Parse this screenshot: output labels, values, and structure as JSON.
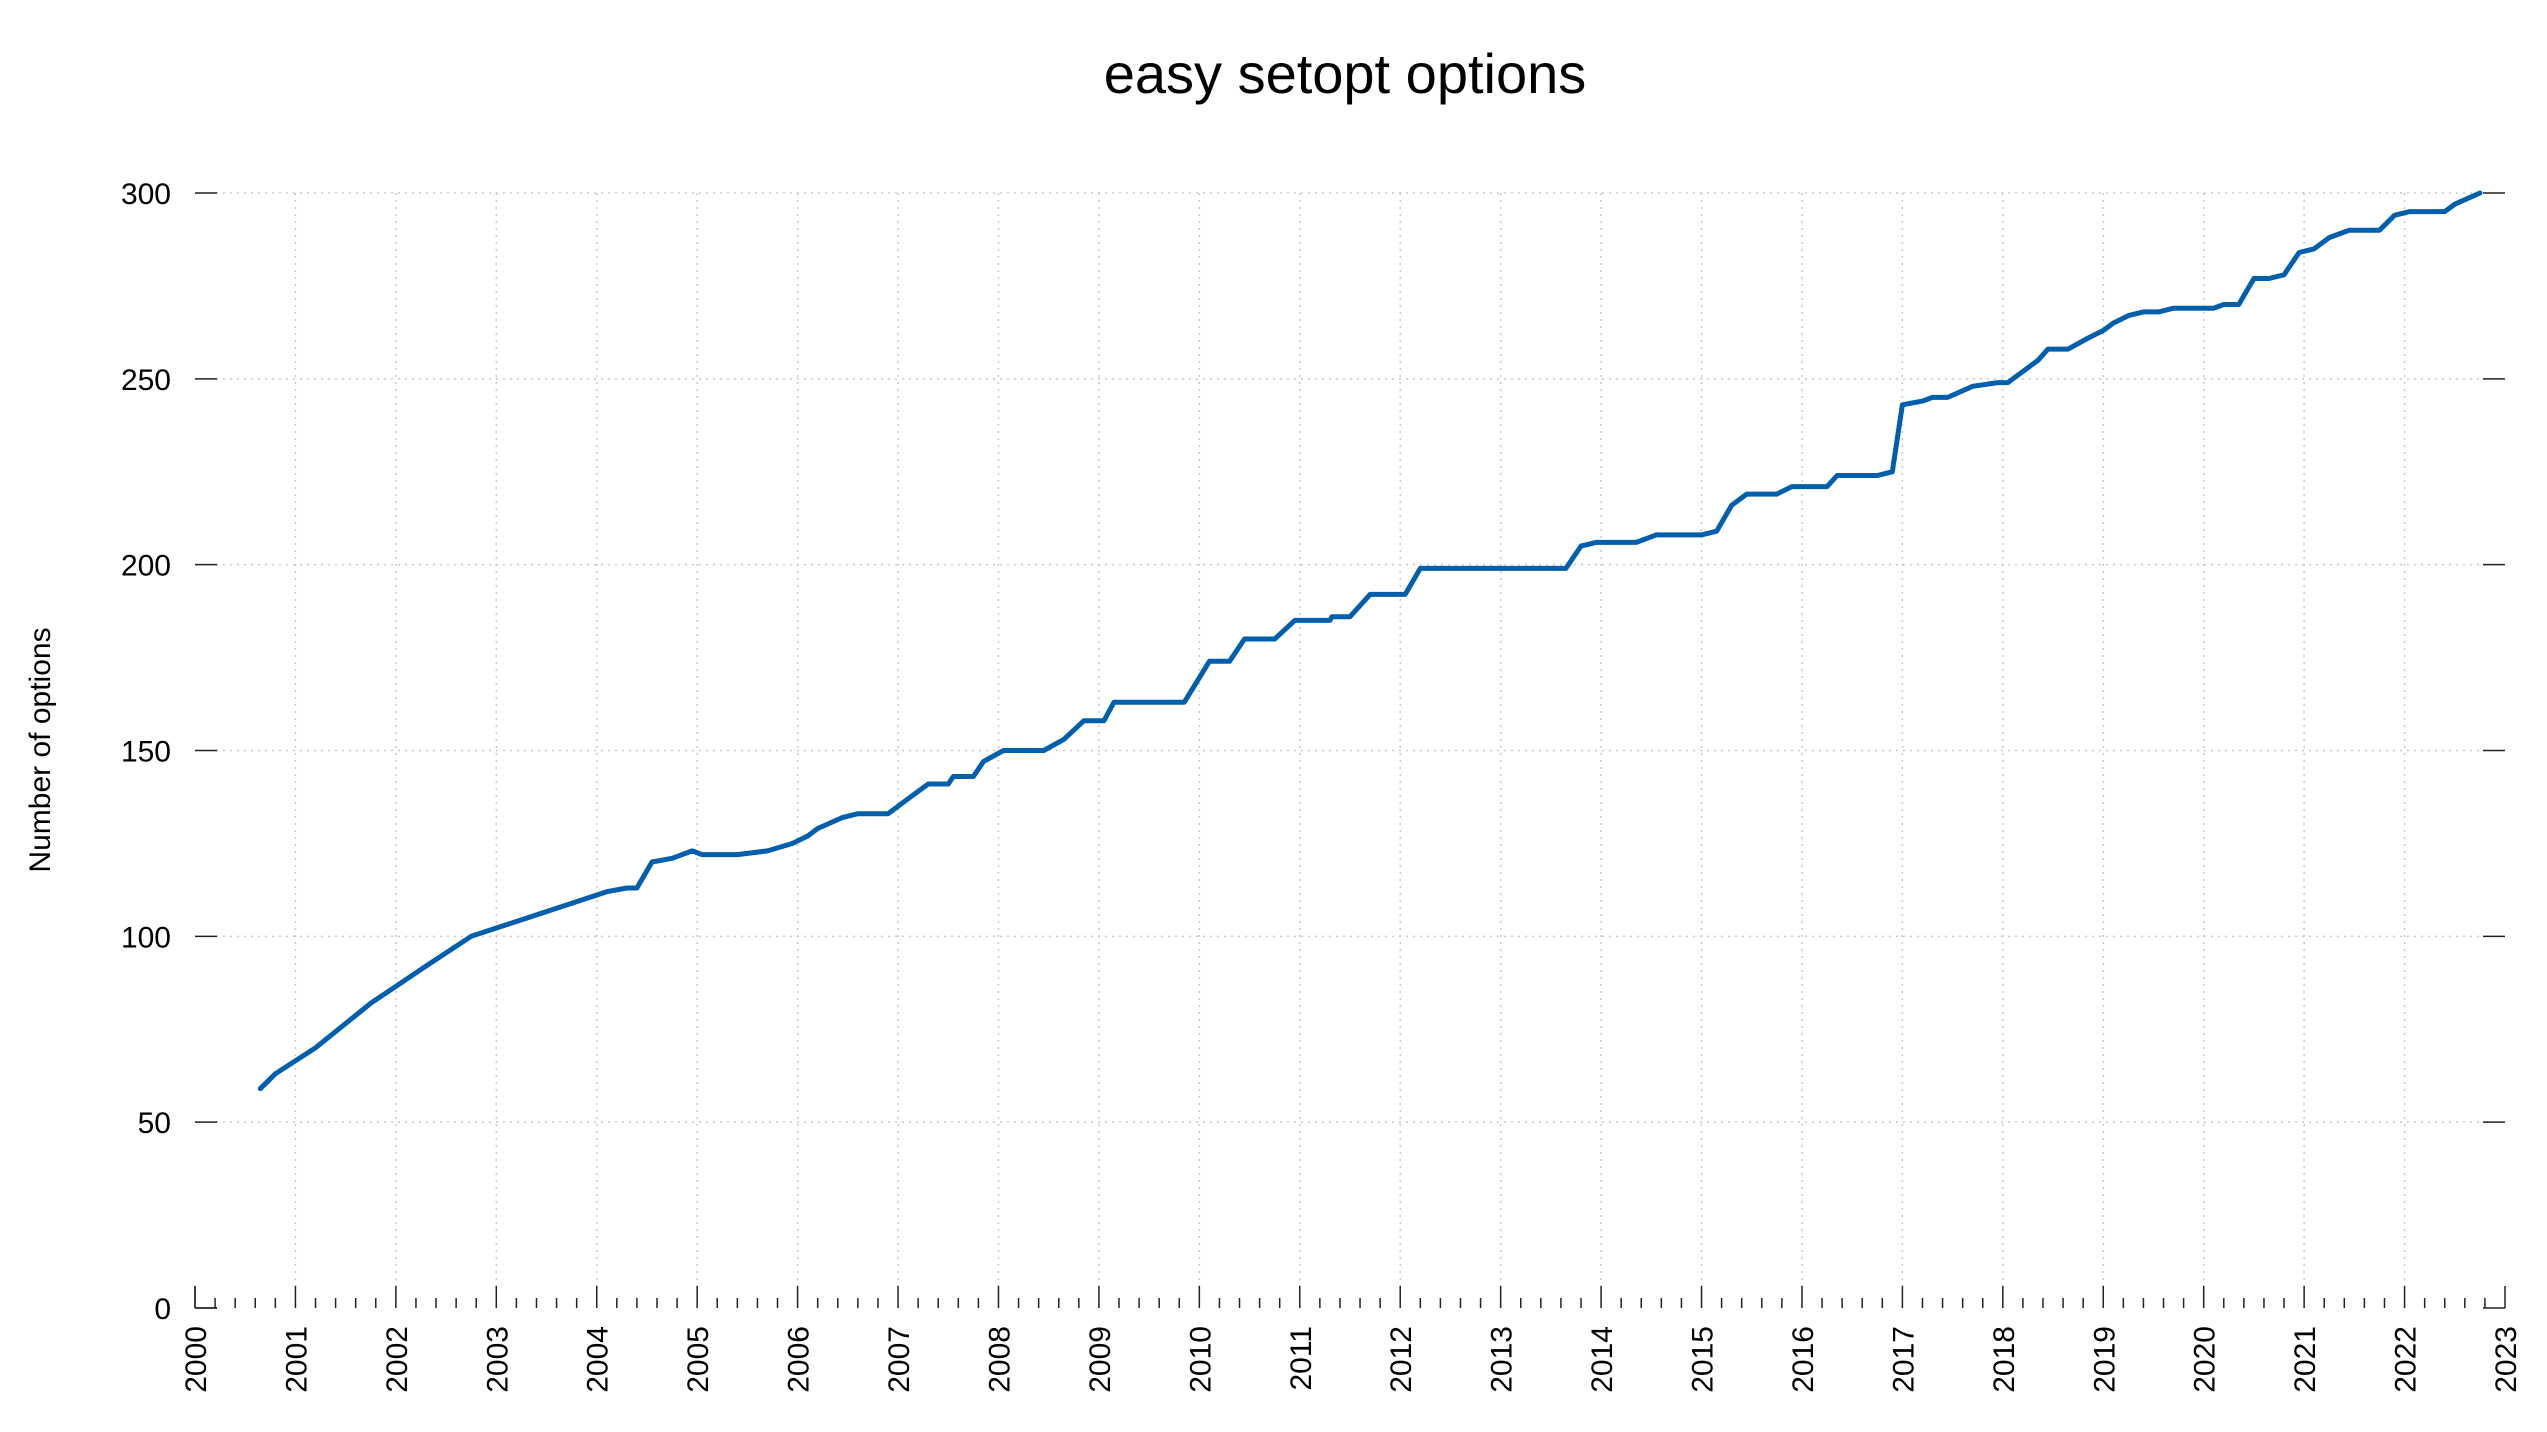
{
  "chart_data": {
    "type": "line",
    "title": "easy setopt options",
    "xlabel": "",
    "ylabel": "Number of options",
    "xlim": [
      2000,
      2023
    ],
    "ylim": [
      0,
      300
    ],
    "yticks": [
      0,
      50,
      100,
      150,
      200,
      250,
      300
    ],
    "xticks": [
      "2000",
      "2001",
      "2002",
      "2003",
      "2004",
      "2005",
      "2006",
      "2007",
      "2008",
      "2009",
      "2010",
      "2011",
      "2012",
      "2013",
      "2014",
      "2015",
      "2016",
      "2017",
      "2018",
      "2019",
      "2020",
      "2021",
      "2022",
      "2023"
    ],
    "grid": true,
    "legend": "none",
    "series_color": "#005fad",
    "series": [
      {
        "x": [
          2000.65,
          2000.8,
          2001.2,
          2001.75,
          2002.3,
          2002.75,
          2003.2,
          2003.65,
          2004.1,
          2004.3,
          2004.4,
          2004.55,
          2004.75,
          2004.95,
          2005.05,
          2005.4,
          2005.7,
          2005.95,
          2006.1,
          2006.2,
          2006.45,
          2006.6,
          2006.8,
          2006.9,
          2007.1,
          2007.3,
          2007.5,
          2007.55,
          2007.75,
          2007.85,
          2008.05,
          2008.45,
          2008.65,
          2008.85,
          2009.05,
          2009.15,
          2009.85,
          2010.1,
          2010.3,
          2010.45,
          2010.75,
          2010.95,
          2011.3,
          2011.32,
          2011.5,
          2011.7,
          2012.05,
          2012.2,
          2013.65,
          2013.8,
          2013.95,
          2014.35,
          2014.55,
          2015.0,
          2015.15,
          2015.3,
          2015.45,
          2015.75,
          2015.9,
          2016.25,
          2016.35,
          2016.75,
          2016.9,
          2017.0,
          2017.2,
          2017.3,
          2017.45,
          2017.7,
          2017.95,
          2018.05,
          2018.25,
          2018.35,
          2018.45,
          2018.65,
          2018.85,
          2019.0,
          2019.1,
          2019.25,
          2019.4,
          2019.55,
          2019.7,
          2019.8,
          2020.1,
          2020.2,
          2020.35,
          2020.5,
          2020.65,
          2020.8,
          2020.95,
          2021.1,
          2021.25,
          2021.35,
          2021.45,
          2021.75,
          2021.9,
          2022.05,
          2022.4,
          2022.5,
          2022.75
        ],
        "y": [
          59,
          63,
          70,
          82,
          92,
          100,
          104,
          108,
          112,
          113,
          113,
          120,
          121,
          123,
          122,
          122,
          123,
          125,
          127,
          129,
          132,
          133,
          133,
          133,
          137,
          141,
          141,
          143,
          143,
          147,
          150,
          150,
          153,
          158,
          158,
          163,
          163,
          174,
          174,
          180,
          180,
          185,
          185,
          186,
          186,
          192,
          192,
          199,
          199,
          205,
          206,
          206,
          208,
          208,
          209,
          216,
          219,
          219,
          221,
          221,
          224,
          224,
          225,
          243,
          244,
          245,
          245,
          248,
          249,
          249,
          253,
          255,
          258,
          258,
          261,
          263,
          265,
          267,
          268,
          268,
          269,
          269,
          269,
          270,
          270,
          277,
          277,
          278,
          284,
          285,
          288,
          289,
          290,
          290,
          294,
          295,
          295,
          297,
          300
        ]
      }
    ]
  }
}
